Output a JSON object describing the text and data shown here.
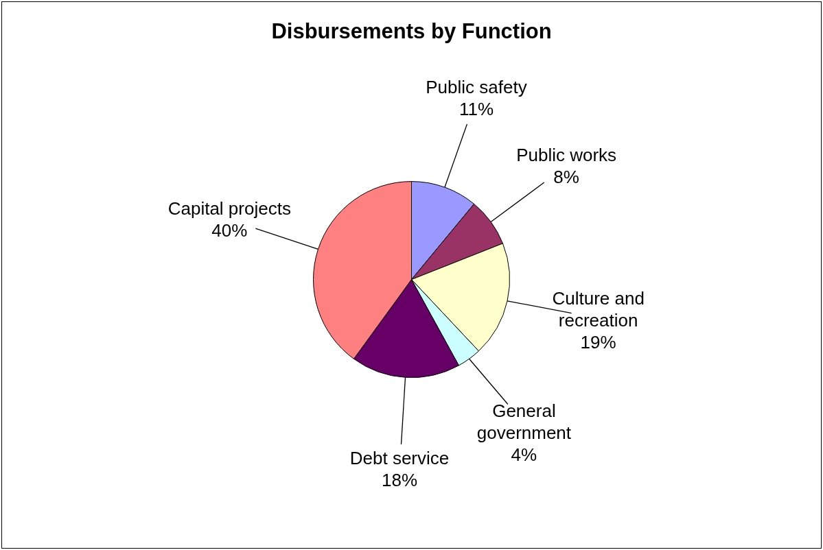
{
  "chart_data": {
    "type": "pie",
    "title": "Disbursements by Function",
    "categories": [
      "Public safety",
      "Public works",
      "Culture and recreation",
      "General government",
      "Debt service",
      "Capital projects"
    ],
    "values": [
      11,
      8,
      19,
      4,
      18,
      40
    ],
    "colors": [
      "#9999ff",
      "#993366",
      "#ffffcc",
      "#ccffff",
      "#660066",
      "#ff8080"
    ],
    "value_labels": [
      "11%",
      "8%",
      "19%",
      "4%",
      "18%",
      "40%"
    ],
    "legend": false
  }
}
